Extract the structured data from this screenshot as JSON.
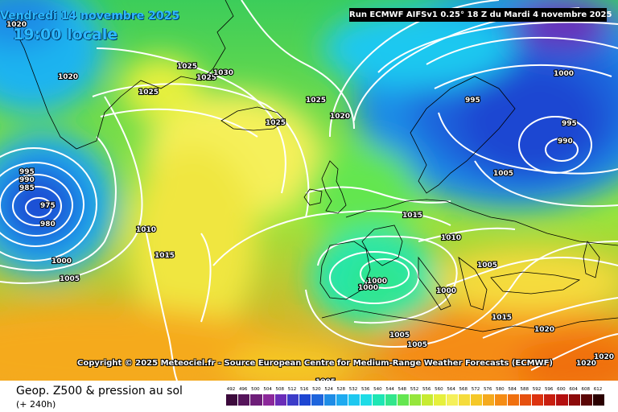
{
  "header": {
    "date_line": "Vendredi 14 novembre 2025",
    "time_line": "19:00 locale",
    "run_info": "Run ECMWF AIFSv1 0.25° 18 Z du Mardi 4 novembre 2025"
  },
  "map": {
    "copyright": "Copyright © 2025 Meteociel.fr - Source European Centre for Medium-Range Weather Forecasts (ECMWF)",
    "pressure_labels": [
      "1020",
      "1020",
      "1025",
      "1025",
      "1030",
      "1025",
      "1025",
      "1025",
      "1020",
      "995",
      "990",
      "985",
      "975",
      "980",
      "1010",
      "1015",
      "1000",
      "1005",
      "1015",
      "1010",
      "1000",
      "1005",
      "1000",
      "1000",
      "1000",
      "995",
      "990",
      "1005",
      "1005",
      "1005",
      "1005",
      "1015",
      "1020",
      "1020",
      "1020"
    ]
  },
  "footer": {
    "product_title": "Geop. Z500 & pression au sol",
    "lead_time": "(+ 240h)"
  },
  "scale": {
    "labels": [
      "492",
      "496",
      "500",
      "504",
      "508",
      "512",
      "516",
      "520",
      "524",
      "528",
      "532",
      "536",
      "540",
      "544",
      "548",
      "552",
      "556",
      "560",
      "564",
      "568",
      "572",
      "576",
      "580",
      "584",
      "588",
      "592",
      "596",
      "600",
      "604",
      "608",
      "612"
    ],
    "colors": [
      "#3c0a3c",
      "#55145a",
      "#6e1e78",
      "#8c289a",
      "#6a2cb8",
      "#3c3cc8",
      "#1e46d2",
      "#1e64dc",
      "#1e8ce6",
      "#1eaaf0",
      "#1ec8f0",
      "#1edce6",
      "#1ee6b4",
      "#32e68c",
      "#64e650",
      "#96e63c",
      "#c8eb32",
      "#e6f03c",
      "#f5f05a",
      "#f5dc3c",
      "#f5c828",
      "#f5aa1e",
      "#f58c14",
      "#f0700f",
      "#e6500f",
      "#dc320f",
      "#c81e0f",
      "#b40f0f",
      "#8c0a0a",
      "#5a0505",
      "#2a0000"
    ]
  }
}
